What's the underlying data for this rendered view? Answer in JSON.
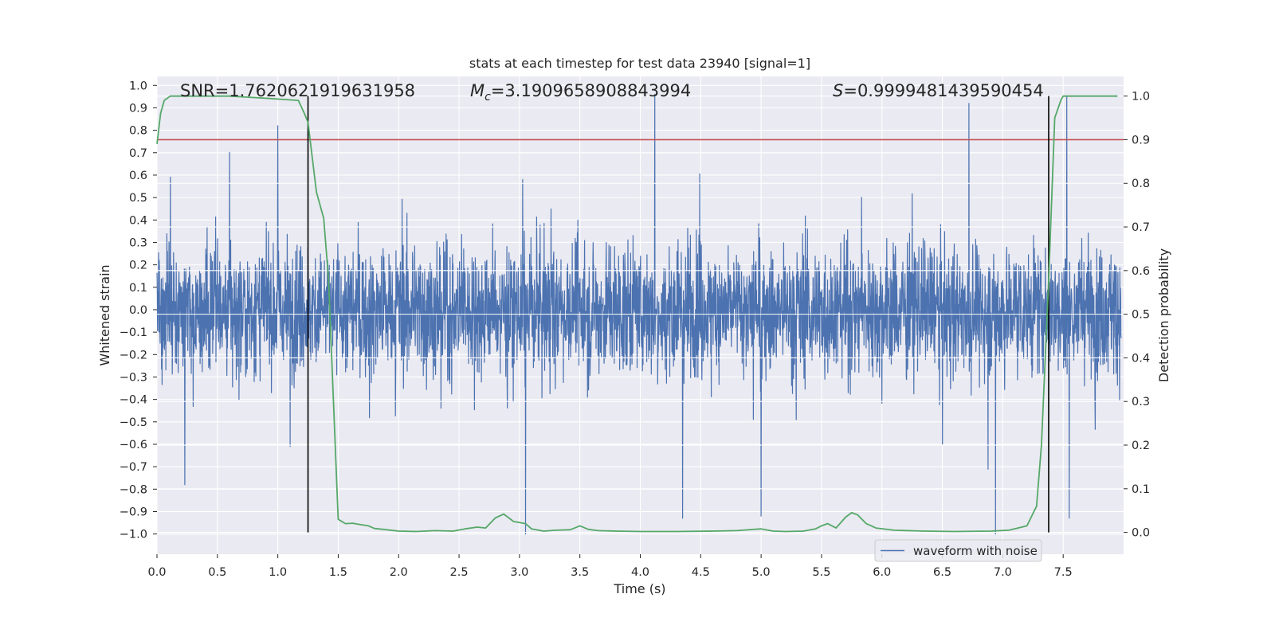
{
  "chart_data": {
    "type": "line",
    "title": "stats at each timestep for test data 23940 [signal=1]",
    "xlabel": "Time (s)",
    "ylabel_left": "Whitened strain",
    "ylabel_right": "Detection probability",
    "xlim": [
      0.0,
      8.0
    ],
    "ylim_left": [
      -1.09,
      1.04
    ],
    "ylim_right": [
      -0.05,
      1.045
    ],
    "x_ticks": [
      "0.0",
      "0.5",
      "1.0",
      "1.5",
      "2.0",
      "2.5",
      "3.0",
      "3.5",
      "4.0",
      "4.5",
      "5.0",
      "5.5",
      "6.0",
      "6.5",
      "7.0",
      "7.5"
    ],
    "y_ticks_left": [
      "1.0",
      "0.9",
      "0.8",
      "0.7",
      "0.6",
      "0.5",
      "0.4",
      "0.3",
      "0.2",
      "0.1",
      "0.0",
      "−0.1",
      "−0.2",
      "−0.3",
      "−0.4",
      "−0.5",
      "−0.6",
      "−0.7",
      "−0.8",
      "−0.9",
      "−1.0"
    ],
    "y_ticks_right": [
      "1.0",
      "0.9",
      "0.8",
      "0.7",
      "0.6",
      "0.5",
      "0.4",
      "0.3",
      "0.2",
      "0.1",
      "0.0"
    ],
    "annotations": {
      "snr": "SNR=1.7620621919631958",
      "mc_symbol": "M",
      "mc_sub": "c",
      "mc_value": "=3.1909658908843994",
      "s_symbol": "S",
      "s_value": "=0.9999481439590454"
    },
    "legend": [
      "waveform with noise"
    ],
    "threshold": 0.9,
    "vertical_markers": [
      1.25,
      7.38
    ],
    "series": [
      {
        "name": "waveform with noise",
        "axis": "left",
        "color": "#4c72b0",
        "style": "dense noise, typical amplitude ~0.45",
        "samples_approx": 8192,
        "notable_peaks": [
          {
            "x": 0.23,
            "y": -0.78
          },
          {
            "x": 1.0,
            "y": 0.82
          },
          {
            "x": 3.05,
            "y": -1.0
          },
          {
            "x": 4.12,
            "y": 0.96
          },
          {
            "x": 4.35,
            "y": -0.93
          },
          {
            "x": 5.0,
            "y": -0.92
          },
          {
            "x": 6.94,
            "y": -1.0
          },
          {
            "x": 6.72,
            "y": 0.92
          },
          {
            "x": 7.53,
            "y": 0.95
          },
          {
            "x": 7.55,
            "y": -0.93
          }
        ]
      },
      {
        "name": "detection probability",
        "axis": "right",
        "color": "#55a868",
        "x": [
          0.0,
          0.03,
          0.06,
          0.11,
          0.3,
          0.6,
          0.9,
          1.17,
          1.22,
          1.25,
          1.32,
          1.38,
          1.42,
          1.5,
          1.56,
          1.62,
          1.68,
          1.75,
          1.8,
          1.9,
          2.0,
          2.15,
          2.3,
          2.45,
          2.55,
          2.65,
          2.72,
          2.8,
          2.87,
          2.95,
          3.05,
          3.1,
          3.2,
          3.3,
          3.42,
          3.5,
          3.57,
          3.65,
          3.8,
          4.0,
          4.3,
          4.6,
          4.8,
          5.0,
          5.1,
          5.2,
          5.35,
          5.45,
          5.5,
          5.55,
          5.62,
          5.7,
          5.75,
          5.8,
          5.87,
          5.95,
          6.1,
          6.35,
          6.6,
          6.9,
          7.05,
          7.2,
          7.28,
          7.32,
          7.38,
          7.43,
          7.48,
          7.5,
          7.6,
          7.95
        ],
        "y": [
          0.89,
          0.96,
          0.99,
          1.0,
          1.0,
          1.0,
          0.995,
          0.99,
          0.96,
          0.94,
          0.78,
          0.72,
          0.58,
          0.03,
          0.02,
          0.021,
          0.018,
          0.015,
          0.009,
          0.006,
          0.003,
          0.002,
          0.004,
          0.003,
          0.008,
          0.012,
          0.01,
          0.033,
          0.042,
          0.025,
          0.02,
          0.008,
          0.003,
          0.005,
          0.006,
          0.015,
          0.007,
          0.004,
          0.003,
          0.002,
          0.002,
          0.003,
          0.004,
          0.008,
          0.003,
          0.002,
          0.003,
          0.008,
          0.015,
          0.02,
          0.01,
          0.035,
          0.045,
          0.04,
          0.02,
          0.01,
          0.005,
          0.003,
          0.002,
          0.003,
          0.005,
          0.015,
          0.06,
          0.2,
          0.58,
          0.95,
          0.99,
          1.0,
          1.0,
          1.0
        ]
      }
    ],
    "colors": {
      "background": "#eaeaf2",
      "grid": "#ffffff",
      "waveform": "#4c72b0",
      "probability": "#55a868",
      "threshold": "#c44e52",
      "marker": "#000000"
    }
  }
}
